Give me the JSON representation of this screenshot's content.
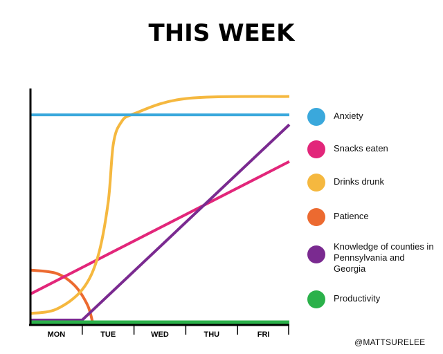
{
  "header": {
    "title": "THIS WEEK"
  },
  "credit": "@MATTSURELEE",
  "colors": {
    "anxiety": "#3aa8dc",
    "snacks": "#e2267a",
    "drinks": "#f5b83f",
    "patience": "#ec6a30",
    "knowledge": "#7a2a90",
    "productivity": "#2bb14a",
    "axis": "#000000"
  },
  "chart_data": {
    "type": "line",
    "title": "THIS WEEK",
    "xlabel": "",
    "ylabel": "",
    "categories": [
      "MON",
      "TUE",
      "WED",
      "THU",
      "FRI"
    ],
    "xlim": [
      0,
      5
    ],
    "ylim": [
      0,
      1
    ],
    "grid": false,
    "legend_position": "right",
    "series": [
      {
        "name": "Anxiety",
        "color": "#3aa8dc",
        "points": [
          [
            0,
            0.955
          ],
          [
            5,
            0.955
          ]
        ]
      },
      {
        "name": "Snacks eaten",
        "color": "#e2267a",
        "points": [
          [
            0,
            0.13
          ],
          [
            5,
            0.74
          ]
        ]
      },
      {
        "name": "Drinks drunk",
        "color": "#f5b83f",
        "points": [
          [
            0,
            0.04
          ],
          [
            0.5,
            0.06
          ],
          [
            1.0,
            0.15
          ],
          [
            1.3,
            0.3
          ],
          [
            1.5,
            0.55
          ],
          [
            1.6,
            0.82
          ],
          [
            1.75,
            0.92
          ],
          [
            2.0,
            0.96
          ],
          [
            3.0,
            1.03
          ],
          [
            5,
            1.04
          ]
        ]
      },
      {
        "name": "Patience",
        "color": "#ec6a30",
        "points": [
          [
            0,
            0.24
          ],
          [
            0.5,
            0.225
          ],
          [
            0.85,
            0.17
          ],
          [
            1.1,
            0.08
          ],
          [
            1.2,
            0.0
          ]
        ]
      },
      {
        "name": "Knowledge of counties in Pennsylvania and Georgia",
        "color": "#7a2a90",
        "points": [
          [
            0,
            0.01
          ],
          [
            1.0,
            0.01
          ],
          [
            5,
            0.91
          ]
        ]
      },
      {
        "name": "Productivity",
        "color": "#2bb14a",
        "points": [
          [
            0,
            0.0
          ],
          [
            5,
            0.0
          ]
        ]
      }
    ]
  }
}
